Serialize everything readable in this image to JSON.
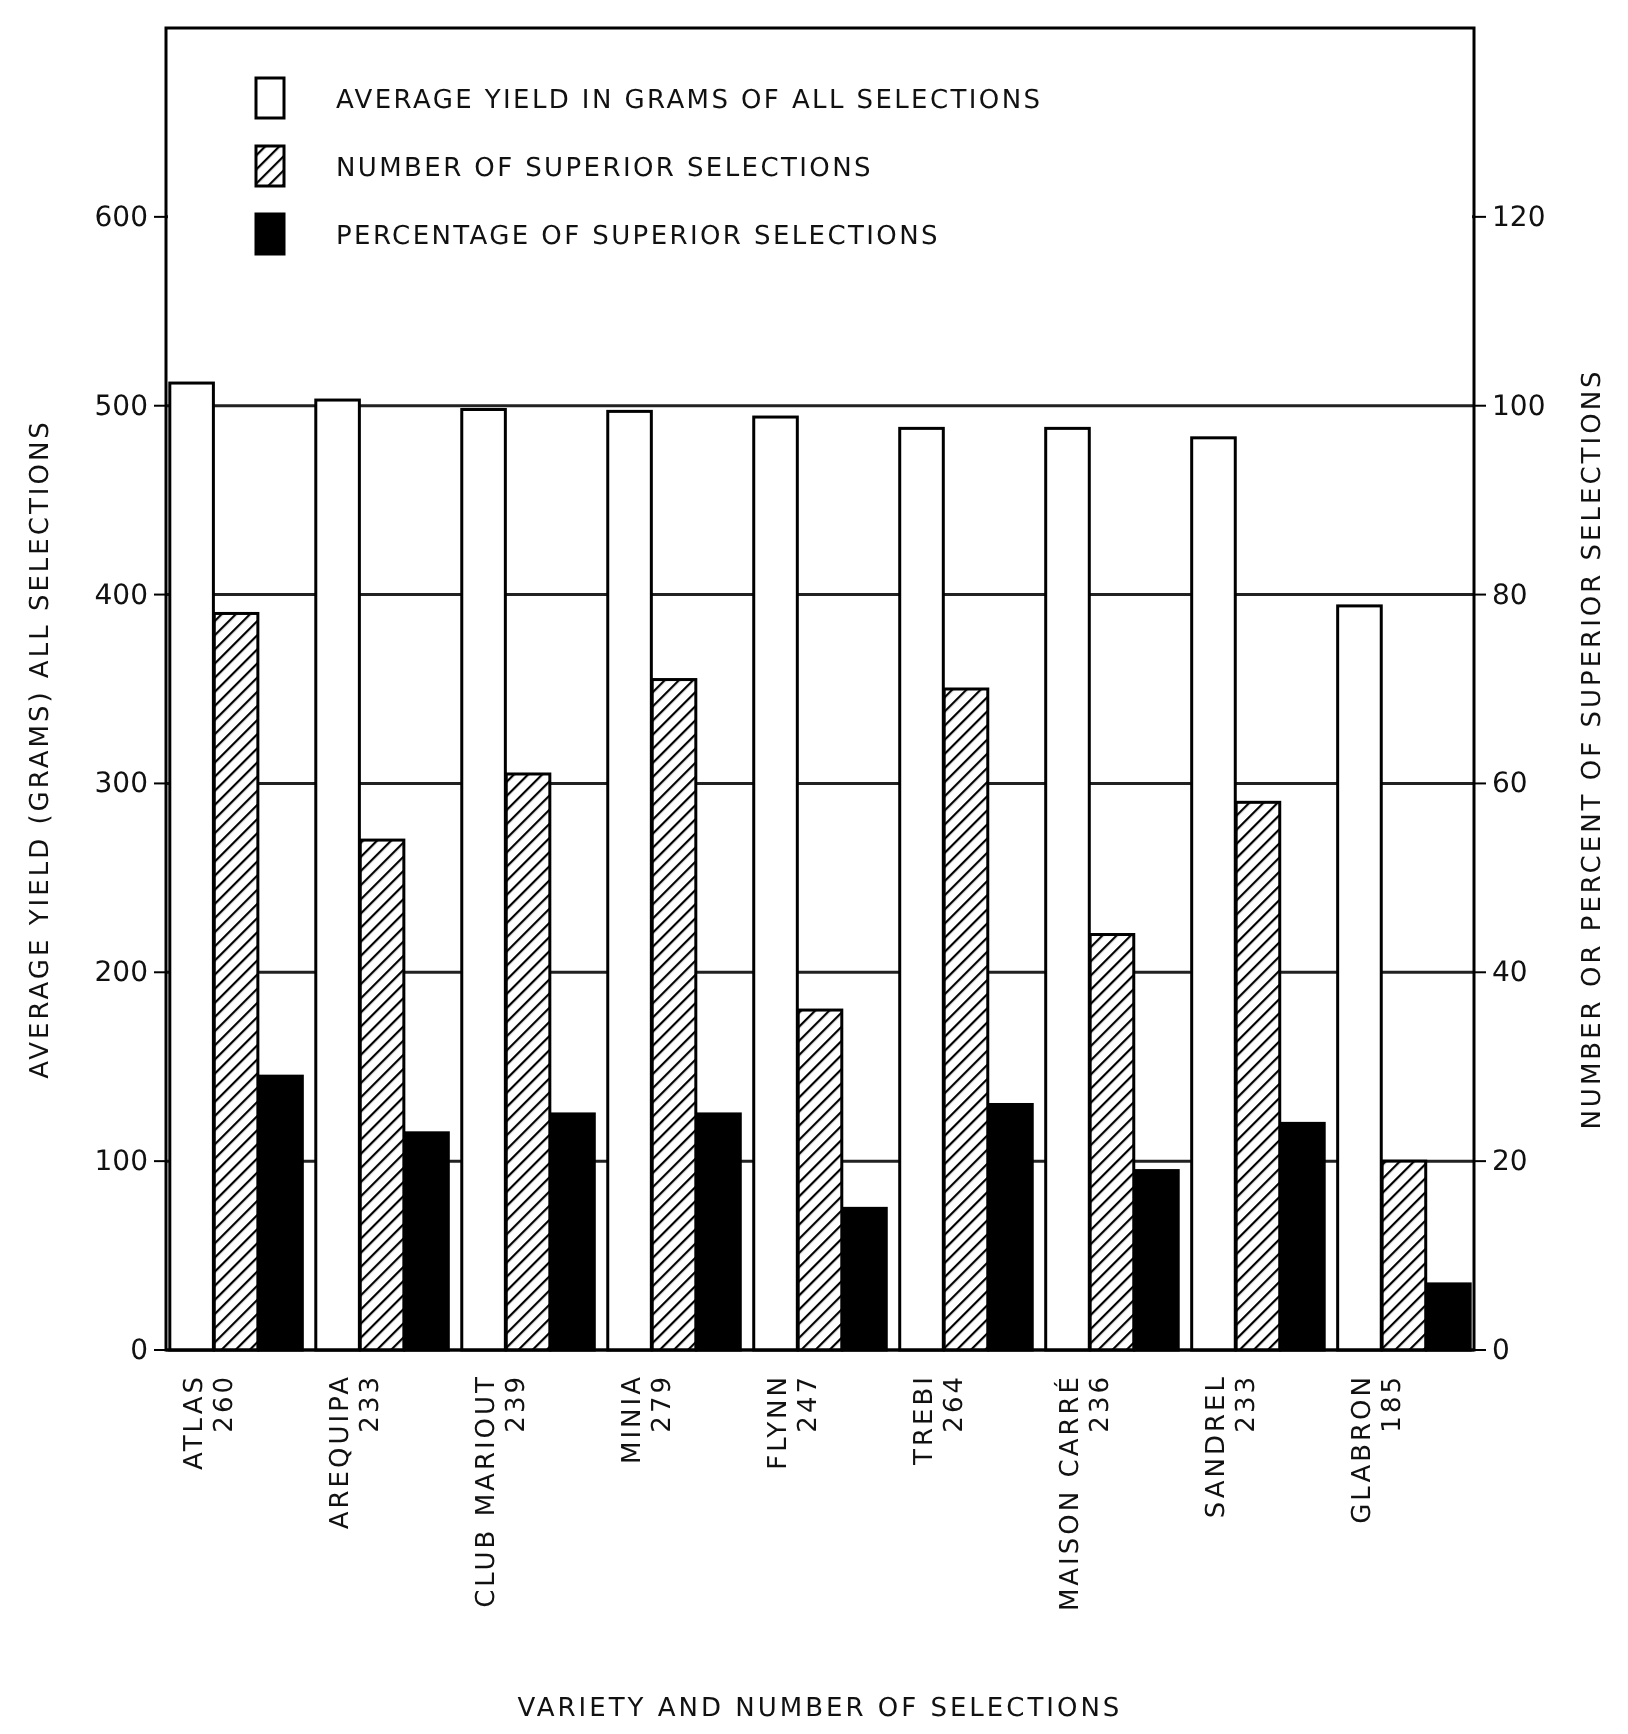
{
  "chart_data": {
    "type": "bar",
    "xlabel": "VARIETY AND NUMBER OF  SELECTIONS",
    "ylabel": "AVERAGE YIELD (GRAMS) ALL SELECTIONS",
    "y2label": "NUMBER OR PERCENT OF SUPERIOR SELECTIONS",
    "categories": [
      "ATLAS\n260",
      "AREQUIPA\n233",
      "CLUB MARIOUT\n239",
      "MINIA\n279",
      "FLYNN\n247",
      "TREBI\n264",
      "MAISON CARRÉ\n236",
      "SANDREL\n233",
      "GLABRON\n185"
    ],
    "series": [
      {
        "name": "AVERAGE YIELD IN GRAMS OF ALL SELECTIONS",
        "color": "#ffffff",
        "values": [
          512,
          503,
          498,
          497,
          494,
          488,
          488,
          483,
          394
        ]
      },
      {
        "name": "NUMBER OF SUPERIOR SELECTIONS",
        "color": "#000000",
        "axis": "y2",
        "values": [
          78,
          54,
          61,
          71,
          36,
          70,
          44,
          58,
          20
        ]
      },
      {
        "name": "PERCENTAGE OF SUPERIOR SELECTIONS",
        "color": "#000000",
        "axis": "y2",
        "values": [
          29,
          23,
          25,
          25,
          15,
          26,
          19,
          24,
          7
        ]
      }
    ],
    "ylim": [
      0,
      700
    ],
    "yticks": [
      0,
      100,
      200,
      300,
      400,
      500,
      600
    ],
    "y2lim": [
      0,
      140
    ],
    "y2ticks": [
      0,
      20,
      40,
      60,
      80,
      100,
      120
    ],
    "grid": "y",
    "legend": "top"
  }
}
